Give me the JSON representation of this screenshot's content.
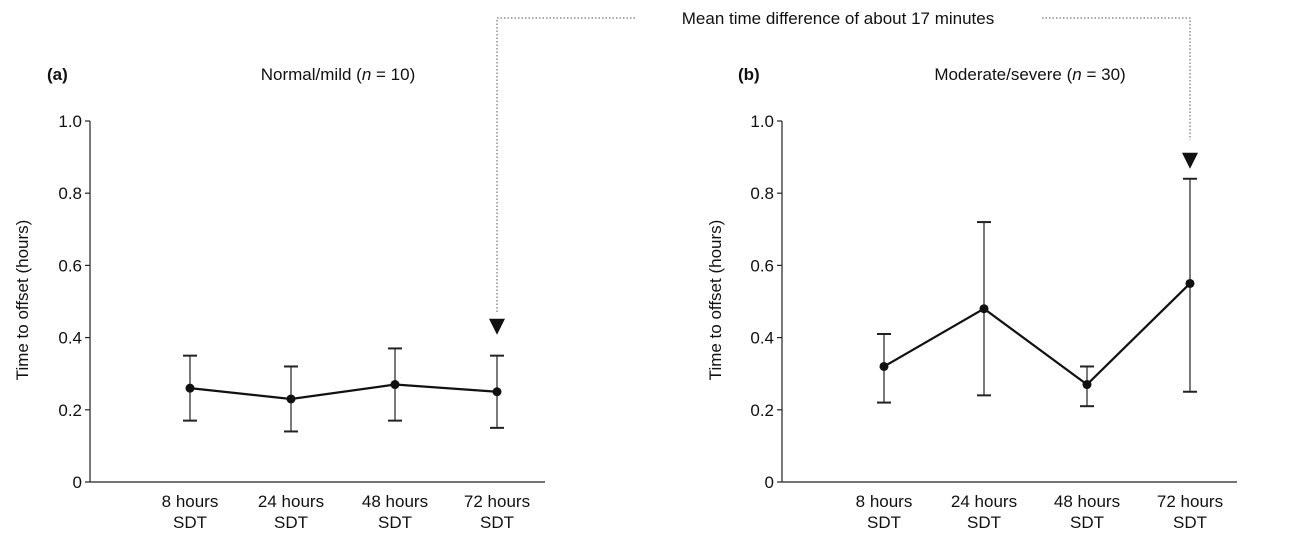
{
  "annotation": {
    "text": "Mean time difference of about 17 minutes"
  },
  "chart_data": [
    {
      "type": "line",
      "panel_label": "(a)",
      "title_prefix": "Normal/mild (",
      "title_n_symbol": "n",
      "title_suffix": " = 10)",
      "ylabel": "Time to offset (hours)",
      "xlabel": "",
      "ylim": [
        0,
        1.0
      ],
      "yticks": [
        0,
        0.2,
        0.4,
        0.6,
        0.8,
        1.0
      ],
      "ytick_labels": [
        "0",
        "0.2",
        "0.4",
        "0.6",
        "0.8",
        "1.0"
      ],
      "categories": [
        [
          "8 hours",
          "SDT"
        ],
        [
          "24 hours",
          "SDT"
        ],
        [
          "48 hours",
          "SDT"
        ],
        [
          "72 hours",
          "SDT"
        ]
      ],
      "values": [
        0.26,
        0.23,
        0.27,
        0.25
      ],
      "error_low": [
        0.17,
        0.14,
        0.17,
        0.15
      ],
      "error_high": [
        0.35,
        0.32,
        0.37,
        0.35
      ],
      "grid": false,
      "arrow_marker": {
        "category_index": 3,
        "y": 0.43
      }
    },
    {
      "type": "line",
      "panel_label": "(b)",
      "title_prefix": "Moderate/severe (",
      "title_n_symbol": "n",
      "title_suffix": " = 30)",
      "ylabel": "Time to offset (hours)",
      "xlabel": "",
      "ylim": [
        0,
        1.0
      ],
      "yticks": [
        0,
        0.2,
        0.4,
        0.6,
        0.8,
        1.0
      ],
      "ytick_labels": [
        "0",
        "0.2",
        "0.4",
        "0.6",
        "0.8",
        "1.0"
      ],
      "categories": [
        [
          "8 hours",
          "SDT"
        ],
        [
          "24 hours",
          "SDT"
        ],
        [
          "48 hours",
          "SDT"
        ],
        [
          "72 hours",
          "SDT"
        ]
      ],
      "values": [
        0.32,
        0.48,
        0.27,
        0.55
      ],
      "error_low": [
        0.22,
        0.24,
        0.21,
        0.25
      ],
      "error_high": [
        0.41,
        0.72,
        0.32,
        0.84
      ],
      "grid": false,
      "arrow_marker": {
        "category_index": 3,
        "y": 0.89
      }
    }
  ]
}
